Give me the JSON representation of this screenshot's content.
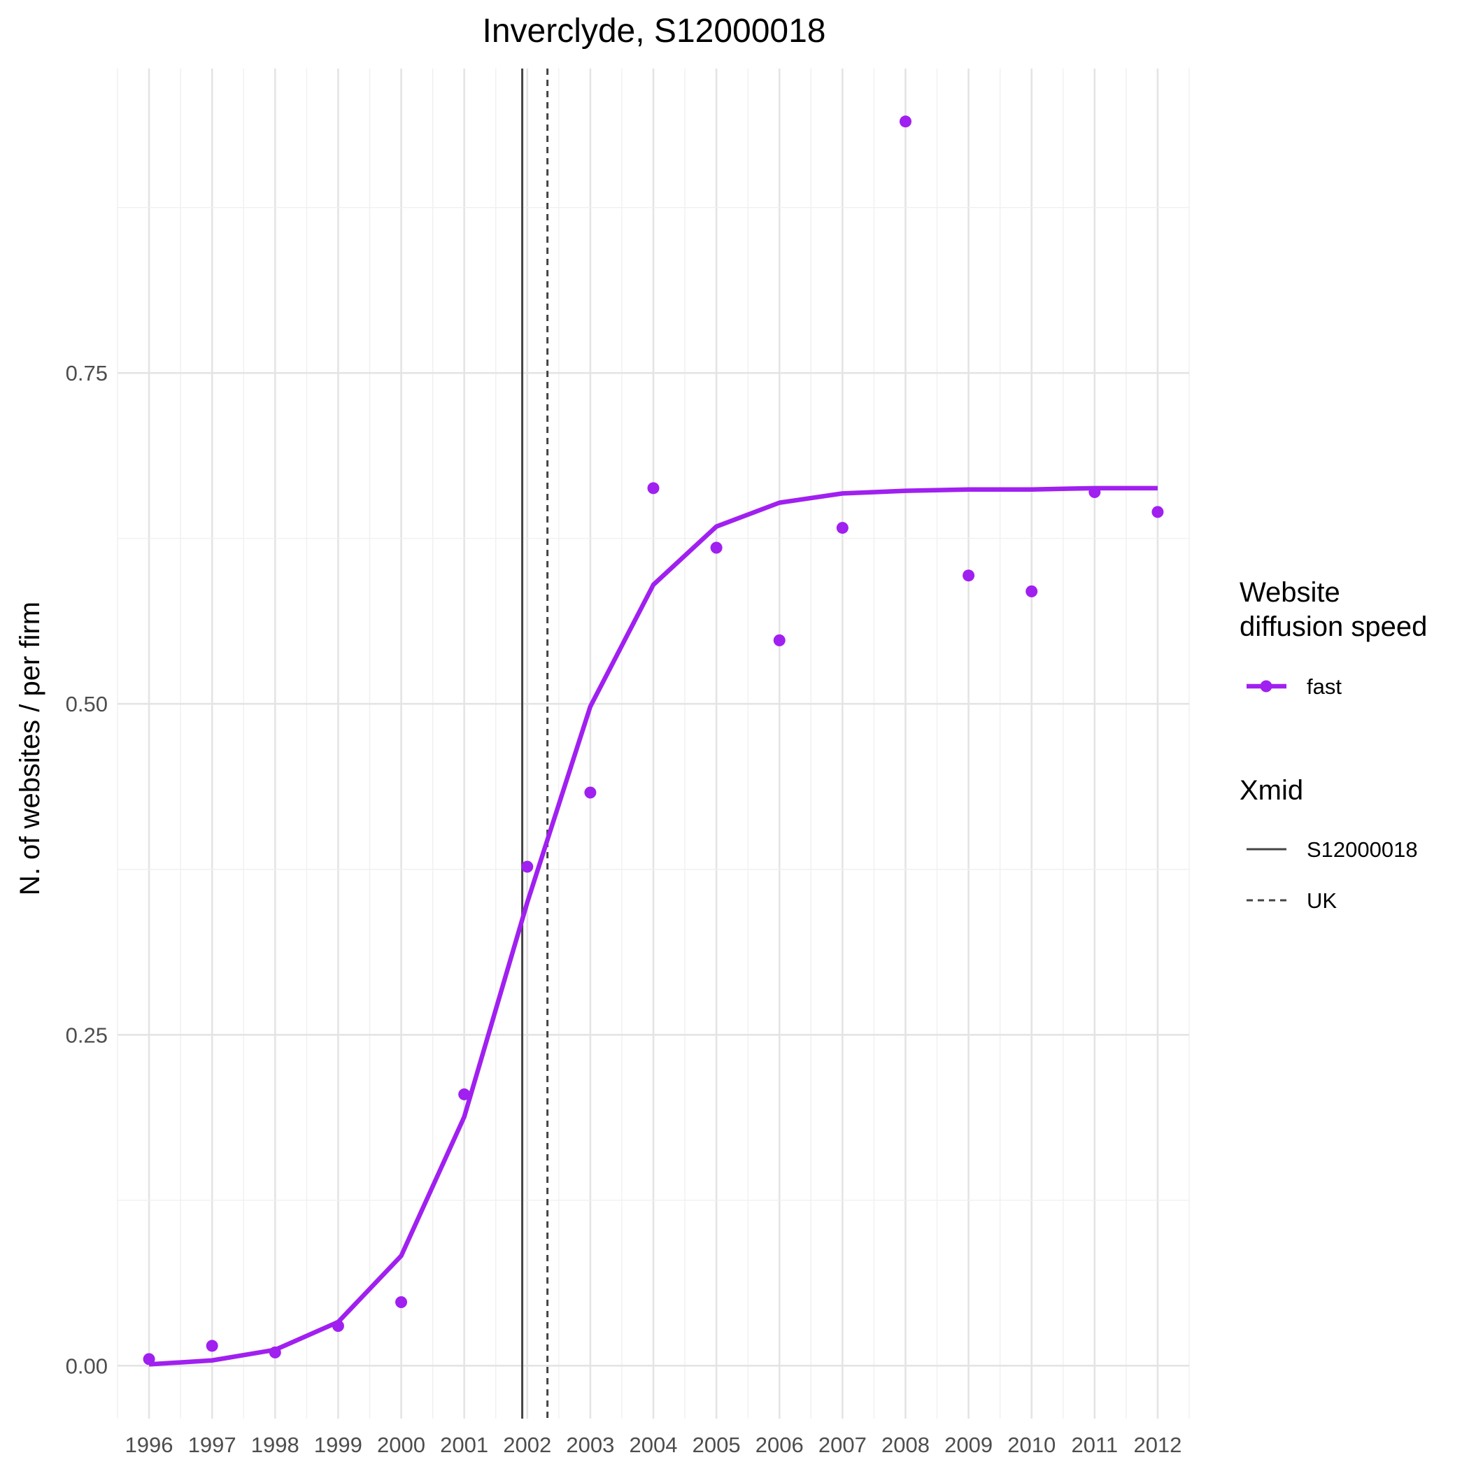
{
  "chart_data": {
    "type": "line",
    "title": "Inverclyde, S12000018",
    "xlabel": "",
    "ylabel": "N. of websites / per firm",
    "x": [
      1996,
      1997,
      1998,
      1999,
      2000,
      2001,
      2002,
      2003,
      2004,
      2005,
      2006,
      2007,
      2008,
      2009,
      2010,
      2011,
      2012
    ],
    "x_tick_labels": [
      "1996",
      "1997",
      "1998",
      "1999",
      "2000",
      "2001",
      "2002",
      "2003",
      "2004",
      "2005",
      "2006",
      "2007",
      "2008",
      "2009",
      "2010",
      "2011",
      "2012"
    ],
    "y_ticks": [
      0.0,
      0.25,
      0.5,
      0.75
    ],
    "y_tick_labels": [
      "0.00",
      "0.25",
      "0.50",
      "0.75"
    ],
    "xlim": [
      1995.5,
      2012.5
    ],
    "ylim": [
      -0.04,
      0.98
    ],
    "grid": true,
    "series": [
      {
        "name": "fast",
        "kind": "points",
        "color": "#a020f0",
        "values": [
          0.005,
          0.015,
          0.01,
          0.03,
          0.048,
          0.205,
          0.377,
          0.433,
          0.663,
          0.618,
          0.548,
          0.633,
          0.94,
          0.597,
          0.585,
          0.66,
          0.645
        ]
      },
      {
        "name": "fast",
        "kind": "line",
        "color": "#a020f0",
        "values": [
          0.001,
          0.004,
          0.012,
          0.033,
          0.083,
          0.188,
          0.35,
          0.498,
          0.59,
          0.634,
          0.652,
          0.659,
          0.661,
          0.662,
          0.662,
          0.663,
          0.663
        ]
      }
    ],
    "vlines": [
      {
        "name": "S12000018",
        "x": 2001.92,
        "style": "solid",
        "color": "#444444"
      },
      {
        "name": "UK",
        "x": 2002.32,
        "style": "dashed",
        "color": "#444444"
      }
    ],
    "legend": {
      "placement": "right",
      "groups": [
        {
          "title": "Website\ndiffusion speed",
          "title_lines": [
            "Website",
            "diffusion speed"
          ],
          "entries": [
            {
              "label": "fast",
              "color": "#a020f0",
              "kind": "line-point"
            }
          ]
        },
        {
          "title": "Xmid",
          "title_lines": [
            "Xmid"
          ],
          "entries": [
            {
              "label": "S12000018",
              "kind": "solid"
            },
            {
              "label": "UK",
              "kind": "dashed"
            }
          ]
        }
      ]
    }
  }
}
